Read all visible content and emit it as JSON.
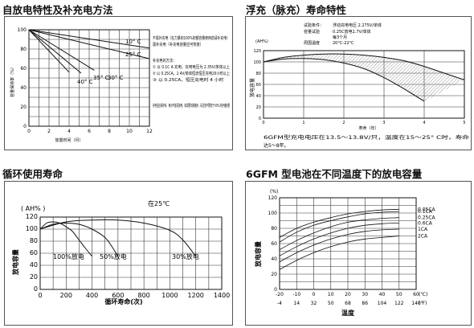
{
  "titles": {
    "p1": "自放电特性及补充电方法",
    "p2": "浮充（脉充）寿命特性",
    "p3": "循环使用寿命",
    "p4": "6GFM 型电池在不同温度下的放电容量"
  },
  "colors": {
    "hatch": "#999999",
    "line": "#333333",
    "grid": "#333333"
  },
  "chart_data": [
    {
      "type": "line",
      "xlabel": "放置时间（月）",
      "ylabel": "容量保持率（%）",
      "x_ticks": [
        "0",
        "2",
        "4",
        "6",
        "8",
        "10",
        "12"
      ],
      "y_ticks": [
        "0",
        "20",
        "40",
        "60",
        "80",
        "100"
      ],
      "xlim": [
        0,
        12
      ],
      "ylim": [
        0,
        100
      ],
      "series": [
        {
          "name": "10° C",
          "x": [
            0,
            12
          ],
          "y": [
            100,
            81
          ]
        },
        {
          "name": "25° C",
          "x": [
            0,
            12
          ],
          "y": [
            100,
            70
          ]
        },
        {
          "name": "30° C",
          "x": [
            0,
            6.5
          ],
          "y": [
            100,
            58
          ]
        },
        {
          "name": "35° C",
          "x": [
            0,
            5.2
          ],
          "y": [
            100,
            55
          ]
        },
        {
          "name": "40° C",
          "x": [
            0,
            4
          ],
          "y": [
            100,
            56
          ]
        }
      ],
      "notes": [
        "不需补充电（在力量的100%的额容量使用前请补充电）",
        "需补充电（补充电容量应可恢复）",
        "补充电的方法：",
        "① 以 0.1C A 充电，充电电压为 2.35V/单体以上",
        "② 以 0.25CA，2.4V/单体恒流恒压充电20小时以上",
        "③ 以 0.25CA，恒压充电时 4 小时",
        "充电后应保存好，绝对不能深放电，如需要长期储存，请注意不要低于 60% 的存储容量"
      ]
    },
    {
      "type": "area",
      "xlabel": "寿命（年）",
      "ylabel": "放电容量",
      "unit": "(AH%)",
      "x_ticks": [
        "0",
        "1",
        "2",
        "3",
        "4",
        "5"
      ],
      "y_ticks": [
        "0",
        "20",
        "40",
        "60",
        "80",
        "100",
        "120"
      ],
      "xlim": [
        0,
        5
      ],
      "ylim": [
        0,
        120
      ],
      "conditions": [
        {
          "label": "试验条件：",
          "value": "浮动充电电压 2.275V/单体"
        },
        {
          "label": "容量试验",
          "value": "0.25C放电1.7V/单体"
        },
        {
          "label": "",
          "value": "每3个月"
        },
        {
          "label": "周围温度",
          "value": "20°C-22°C"
        }
      ],
      "series": [
        {
          "x": [
            0,
            0.5,
            1,
            1.5,
            2,
            2.5,
            3,
            3.5,
            4,
            4.5,
            5
          ],
          "y": [
            100,
            108,
            112,
            114,
            114,
            112,
            108,
            102,
            92,
            80,
            68
          ]
        },
        {
          "x": [
            0,
            0.5,
            1,
            1.5,
            2,
            2.5,
            3,
            3.5,
            4
          ],
          "y": [
            100,
            105,
            106,
            104,
            98,
            88,
            72,
            52,
            30
          ]
        }
      ],
      "caption": "6GFM型充电电压在13.5～13.8V/只，温度在15～25° C时，寿命达5～8年。"
    },
    {
      "type": "line",
      "title": "在25℃",
      "xlabel": "循环寿命(次)",
      "ylabel": "放电容量",
      "unit": "( AH% )",
      "x_ticks": [
        "0",
        "200",
        "400",
        "600",
        "800",
        "1000",
        "1200",
        "1400"
      ],
      "y_ticks": [
        "0",
        "20",
        "40",
        "60",
        "80",
        "100",
        "120"
      ],
      "xlim": [
        0,
        1400
      ],
      "ylim": [
        0,
        120
      ],
      "series": [
        {
          "name": "100%放电",
          "x": [
            0,
            50,
            100,
            150,
            200,
            250,
            300,
            350,
            400
          ],
          "y": [
            100,
            110,
            112,
            110,
            104,
            96,
            82,
            68,
            55
          ]
        },
        {
          "name": "50%放电",
          "x": [
            0,
            100,
            200,
            300,
            400,
            500,
            550,
            600
          ],
          "y": [
            100,
            108,
            110,
            108,
            100,
            86,
            72,
            55
          ]
        },
        {
          "name": "30%放电",
          "x": [
            0,
            200,
            400,
            600,
            800,
            1000,
            1100,
            1200
          ],
          "y": [
            100,
            112,
            115,
            115,
            110,
            98,
            82,
            55
          ]
        }
      ]
    },
    {
      "type": "line",
      "xlabel": "温度",
      "ylabel": "放电容量",
      "unit": "(%)",
      "x_ticks": [
        "-20",
        "-10",
        "0",
        "10",
        "20",
        "30",
        "40",
        "50",
        "60"
      ],
      "x2_ticks": [
        "-4",
        "14",
        "32",
        "50",
        "68",
        "86",
        "104",
        "122",
        "140"
      ],
      "x_unit": "(℃)",
      "x2_unit": "(℉)",
      "y_ticks": [
        "0",
        "20",
        "40",
        "60",
        "80",
        "100",
        "120"
      ],
      "xlim": [
        -20,
        60
      ],
      "ylim": [
        0,
        120
      ],
      "series": [
        {
          "name": "0.05CA",
          "x": [
            -20,
            -10,
            0,
            10,
            20,
            30,
            40,
            50
          ],
          "y": [
            68,
            80,
            88,
            94,
            99,
            102,
            104,
            105
          ]
        },
        {
          "name": "0.1CA",
          "x": [
            -20,
            -10,
            0,
            10,
            20,
            30,
            40,
            50
          ],
          "y": [
            62,
            75,
            84,
            90,
            95,
            99,
            101,
            102
          ]
        },
        {
          "name": "0.25CA",
          "x": [
            -20,
            -10,
            0,
            10,
            20,
            30,
            40,
            50
          ],
          "y": [
            52,
            64,
            74,
            82,
            88,
            91,
            93,
            94
          ]
        },
        {
          "name": "0.6CA",
          "x": [
            -20,
            -10,
            0,
            10,
            20,
            30,
            40,
            50
          ],
          "y": [
            44,
            56,
            66,
            74,
            80,
            84,
            86,
            87
          ]
        },
        {
          "name": "1CA",
          "x": [
            -20,
            -10,
            0,
            10,
            20,
            30,
            40,
            50
          ],
          "y": [
            36,
            48,
            58,
            66,
            72,
            76,
            78,
            79
          ]
        },
        {
          "name": "2CA",
          "x": [
            -20,
            -10,
            0,
            10,
            20,
            30,
            40,
            50
          ],
          "y": [
            26,
            38,
            48,
            56,
            62,
            66,
            68,
            70
          ]
        }
      ]
    }
  ]
}
